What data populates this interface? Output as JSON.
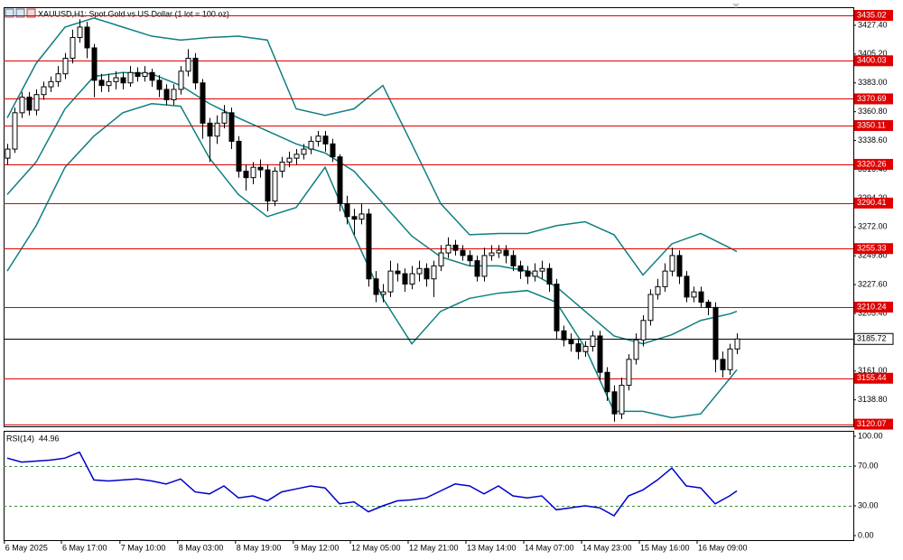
{
  "chart_data": {
    "type": "candlestick",
    "title": "XAUUSD,H1:  Spot Gold vs US Dollar (1 lot = 100 oz)",
    "ylim": [
      3118.4,
      3441.3
    ],
    "yticks": [
      {
        "value": 3427.4,
        "label": "3427.40"
      },
      {
        "value": 3405.2,
        "label": "3405.20"
      },
      {
        "value": 3383,
        "label": "3383.00"
      },
      {
        "value": 3360.8,
        "label": "3360.80"
      },
      {
        "value": 3338.6,
        "label": "3338.60"
      },
      {
        "value": 3316.4,
        "label": "3316.40"
      },
      {
        "value": 3294.2,
        "label": "3294.20"
      },
      {
        "value": 3272,
        "label": "3272.00"
      },
      {
        "value": 3249.8,
        "label": "3249.80"
      },
      {
        "value": 3227.6,
        "label": "3227.60"
      },
      {
        "value": 3205.4,
        "label": "3205.40"
      },
      {
        "value": 3183.2,
        "label": "3183.20"
      },
      {
        "value": 3161,
        "label": "3161.00"
      },
      {
        "value": 3138.8,
        "label": "3138.80"
      }
    ],
    "xticks": [
      {
        "value": -0.4,
        "label": "6 May 2025"
      },
      {
        "value": 7.5,
        "label": "6 May 17:00"
      },
      {
        "value": 15.6,
        "label": "7 May 10:00"
      },
      {
        "value": 23.6,
        "label": "8 May 03:00"
      },
      {
        "value": 31.6,
        "label": "8 May 19:00"
      },
      {
        "value": 39.6,
        "label": "9 May 12:00"
      },
      {
        "value": 47.5,
        "label": "12 May 05:00"
      },
      {
        "value": 55.5,
        "label": "12 May 21:00"
      },
      {
        "value": 63.5,
        "label": "13 May 14:00"
      },
      {
        "value": 71.5,
        "label": "14 May 07:00"
      },
      {
        "value": 79.5,
        "label": "14 May 23:00"
      },
      {
        "value": 87.5,
        "label": "15 May 16:00"
      },
      {
        "value": 95.5,
        "label": "16 May 09:00"
      }
    ],
    "color": "#000000",
    "open": [
      3325,
      3332,
      3360,
      3372,
      3362,
      3374,
      3380,
      3384,
      3390,
      3402,
      3418,
      3426,
      3410,
      3385,
      3381,
      3384,
      3387,
      3383,
      3391,
      3388,
      3391,
      3385,
      3378,
      3370,
      3378,
      3392,
      3402,
      3383,
      3352,
      3342,
      3352,
      3360,
      3338,
      3315,
      3310,
      3318,
      3316,
      3292,
      3315,
      3322,
      3325,
      3328,
      3332,
      3338,
      3342,
      3336,
      3326,
      3290,
      3280,
      3278,
      3282,
      3232,
      3220,
      3222,
      3238,
      3236,
      3228,
      3236,
      3240,
      3232,
      3242,
      3252,
      3258,
      3254,
      3250,
      3246,
      3234,
      3250,
      3252,
      3254,
      3250,
      3242,
      3238,
      3234,
      3238,
      3240,
      3228,
      3192,
      3185,
      3182,
      3176,
      3180,
      3188,
      3160,
      3145,
      3128,
      3150,
      3170,
      3185,
      3200,
      3220,
      3226,
      3238,
      3250,
      3234,
      3218,
      3222,
      3214,
      3210,
      3170,
      3162,
      3178
    ],
    "high": [
      3336,
      3364,
      3376,
      3376,
      3378,
      3384,
      3388,
      3396,
      3406,
      3424,
      3432,
      3430,
      3413,
      3390,
      3390,
      3392,
      3391,
      3396,
      3395,
      3396,
      3394,
      3389,
      3382,
      3382,
      3396,
      3409,
      3406,
      3386,
      3356,
      3358,
      3366,
      3364,
      3342,
      3320,
      3322,
      3324,
      3320,
      3318,
      3326,
      3330,
      3332,
      3336,
      3342,
      3346,
      3346,
      3340,
      3328,
      3296,
      3286,
      3290,
      3286,
      3238,
      3228,
      3246,
      3244,
      3240,
      3242,
      3246,
      3244,
      3246,
      3258,
      3264,
      3262,
      3258,
      3254,
      3250,
      3256,
      3258,
      3258,
      3258,
      3254,
      3246,
      3242,
      3244,
      3246,
      3244,
      3232,
      3196,
      3190,
      3186,
      3184,
      3192,
      3192,
      3164,
      3150,
      3156,
      3174,
      3190,
      3204,
      3224,
      3232,
      3244,
      3256,
      3254,
      3238,
      3226,
      3226,
      3216,
      3214,
      3176,
      3182,
      3190
    ],
    "low": [
      3320,
      3329,
      3356,
      3358,
      3358,
      3370,
      3376,
      3380,
      3386,
      3398,
      3414,
      3402,
      3372,
      3376,
      3376,
      3378,
      3378,
      3380,
      3384,
      3384,
      3380,
      3372,
      3366,
      3366,
      3374,
      3388,
      3378,
      3340,
      3322,
      3336,
      3348,
      3332,
      3310,
      3300,
      3305,
      3310,
      3284,
      3288,
      3310,
      3318,
      3320,
      3324,
      3328,
      3334,
      3330,
      3322,
      3284,
      3274,
      3266,
      3274,
      3226,
      3214,
      3214,
      3218,
      3230,
      3222,
      3224,
      3230,
      3226,
      3218,
      3238,
      3248,
      3250,
      3246,
      3242,
      3230,
      3230,
      3246,
      3248,
      3244,
      3238,
      3232,
      3228,
      3230,
      3232,
      3222,
      3186,
      3180,
      3176,
      3170,
      3172,
      3176,
      3154,
      3138,
      3122,
      3124,
      3146,
      3166,
      3180,
      3196,
      3216,
      3222,
      3234,
      3228,
      3214,
      3214,
      3210,
      3204,
      3160,
      3156,
      3158,
      3174
    ],
    "close": [
      3332,
      3360,
      3372,
      3362,
      3374,
      3380,
      3384,
      3390,
      3402,
      3418,
      3426,
      3410,
      3385,
      3381,
      3384,
      3387,
      3383,
      3391,
      3388,
      3391,
      3385,
      3378,
      3370,
      3378,
      3392,
      3402,
      3383,
      3352,
      3342,
      3352,
      3360,
      3338,
      3315,
      3310,
      3318,
      3316,
      3292,
      3315,
      3322,
      3325,
      3328,
      3332,
      3338,
      3342,
      3336,
      3326,
      3290,
      3280,
      3278,
      3282,
      3232,
      3220,
      3222,
      3238,
      3236,
      3228,
      3236,
      3240,
      3232,
      3242,
      3252,
      3258,
      3254,
      3250,
      3246,
      3234,
      3250,
      3252,
      3254,
      3250,
      3242,
      3238,
      3234,
      3238,
      3240,
      3228,
      3192,
      3185,
      3182,
      3176,
      3180,
      3188,
      3160,
      3145,
      3128,
      3150,
      3170,
      3185,
      3200,
      3220,
      3226,
      3238,
      3250,
      3234,
      3218,
      3222,
      3214,
      3210,
      3170,
      3162,
      3178,
      3185.72
    ],
    "bollinger": {
      "color": "#0f7f7f",
      "x": [
        0,
        4,
        8,
        12,
        16,
        20,
        24,
        28,
        32,
        36,
        40,
        44,
        48,
        52,
        56,
        60,
        64,
        68,
        72,
        76,
        80,
        84,
        88,
        92,
        96,
        100,
        101
      ],
      "upper": [
        3356,
        3398,
        3426,
        3433,
        3426,
        3419,
        3416,
        3418,
        3419,
        3416,
        3363,
        3358,
        3363,
        3381,
        3336,
        3290,
        3266,
        3267,
        3267,
        3273,
        3276,
        3266,
        3235,
        3259,
        3267,
        3256,
        3253
      ],
      "middle": [
        3297,
        3322,
        3363,
        3388,
        3391,
        3390,
        3381,
        3367,
        3356,
        3346,
        3336,
        3329,
        3315,
        3290,
        3265,
        3249,
        3242,
        3242,
        3238,
        3226,
        3207,
        3188,
        3182,
        3189,
        3200,
        3205,
        3207
      ],
      "lower": [
        3238,
        3273,
        3318,
        3342,
        3360,
        3367,
        3365,
        3325,
        3297,
        3280,
        3287,
        3318,
        3266,
        3217,
        3182,
        3207,
        3217,
        3221,
        3223,
        3214,
        3179,
        3130,
        3130,
        3125,
        3128,
        3155,
        3162
      ]
    },
    "levels": {
      "color": "#e00000",
      "values": [
        3435.02,
        3400.03,
        3370.69,
        3350.11,
        3320.26,
        3290.41,
        3255.33,
        3210.24,
        3155.44,
        3120.07
      ]
    },
    "last_price": 3185.72,
    "rsi": {
      "label": "RSI(14)",
      "color": "#0000cc",
      "ylim": [
        0,
        100
      ],
      "yticks": [
        {
          "value": 100,
          "label": "100.00"
        },
        {
          "value": 70,
          "label": "70.00"
        },
        {
          "value": 30,
          "label": "30.00"
        },
        {
          "value": 0,
          "label": "0.00"
        }
      ],
      "levels": [
        70,
        30
      ],
      "x": [
        0,
        2,
        4,
        6,
        8,
        10,
        12,
        14,
        16,
        18,
        20,
        22,
        24,
        26,
        28,
        30,
        32,
        34,
        36,
        38,
        40,
        42,
        44,
        46,
        48,
        50,
        52,
        54,
        56,
        58,
        60,
        62,
        64,
        66,
        68,
        70,
        72,
        74,
        76,
        78,
        80,
        82,
        84,
        86,
        88,
        90,
        92,
        94,
        96,
        98,
        100,
        101
      ],
      "values": [
        78,
        74,
        75,
        76,
        78,
        84,
        56,
        55,
        56,
        57,
        55,
        52,
        57,
        44,
        42,
        50,
        38,
        40,
        35,
        44,
        47,
        50,
        48,
        32,
        34,
        24,
        30,
        35,
        36,
        38,
        45,
        52,
        50,
        42,
        50,
        40,
        38,
        40,
        26,
        28,
        30,
        28,
        20,
        40,
        46,
        56,
        68,
        50,
        48,
        32,
        40,
        44.96
      ]
    }
  }
}
